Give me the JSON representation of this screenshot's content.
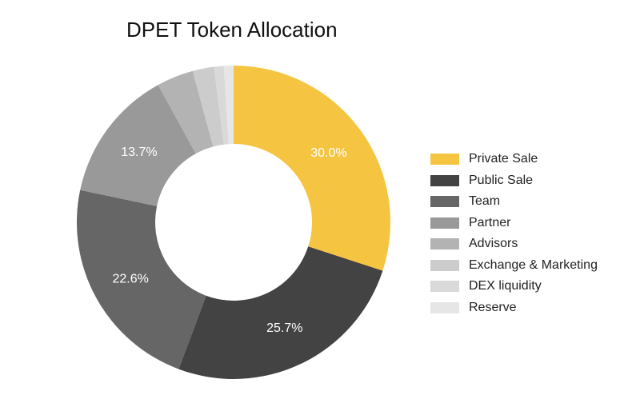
{
  "chart_data": {
    "type": "pie",
    "title": "DPET Token Allocation",
    "categories": [
      "Private Sale",
      "Public Sale",
      "Team",
      "Partner",
      "Advisors",
      "Exchange & Marketing",
      "DEX liquidity",
      "Reserve"
    ],
    "values": [
      30.0,
      25.7,
      22.6,
      13.7,
      3.8,
      2.2,
      1.0,
      1.0
    ],
    "data_labels": [
      "30.0%",
      "25.7%",
      "22.6%",
      "13.7%",
      "",
      "",
      "",
      ""
    ],
    "colors": [
      "#f5c542",
      "#434343",
      "#666666",
      "#999999",
      "#b3b3b3",
      "#cccccc",
      "#d9d9d9",
      "#e6e6e6"
    ],
    "donut": true,
    "legend_position": "right"
  }
}
